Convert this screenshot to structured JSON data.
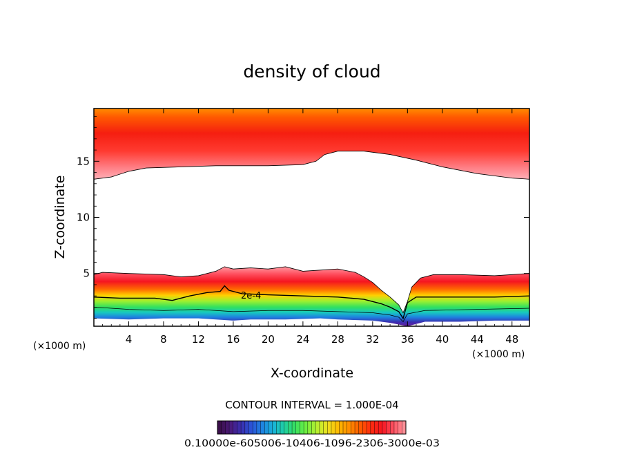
{
  "chart_data": {
    "type": "contour",
    "title": "density of cloud",
    "xlabel": "X-coordinate",
    "ylabel": "Z-coordinate",
    "x_unit": "(×1000 m)",
    "y_unit": "(×1000 m)",
    "xlim": [
      0,
      50
    ],
    "ylim": [
      0.3,
      19.7
    ],
    "x_ticks": [
      4,
      8,
      12,
      16,
      20,
      24,
      28,
      32,
      36,
      40,
      44,
      48
    ],
    "y_ticks": [
      5,
      10,
      15
    ],
    "contour_interval_text": "CONTOUR INTERVAL = 1.000E-04",
    "contour_label": "2e-4",
    "colorbar_labels_text": "0.10000e-605006-10406-1096-2306-3000e-03",
    "layers": [
      {
        "name": "upper-cloud",
        "top": [
          [
            0,
            19.7
          ],
          [
            50,
            19.7
          ]
        ],
        "bottom": [
          [
            0,
            13.4
          ],
          [
            2,
            13.6
          ],
          [
            4,
            14.1
          ],
          [
            6,
            14.4
          ],
          [
            10,
            14.5
          ],
          [
            14,
            14.6
          ],
          [
            20,
            14.6
          ],
          [
            24,
            14.7
          ],
          [
            25.5,
            15.0
          ],
          [
            26.5,
            15.6
          ],
          [
            28,
            15.9
          ],
          [
            31,
            15.9
          ],
          [
            34,
            15.6
          ],
          [
            37,
            15.1
          ],
          [
            40,
            14.5
          ],
          [
            44,
            13.9
          ],
          [
            48,
            13.5
          ],
          [
            50,
            13.4
          ]
        ]
      },
      {
        "name": "lower-cloud",
        "top": [
          [
            0,
            4.9
          ],
          [
            1,
            5.1
          ],
          [
            4,
            5.0
          ],
          [
            8,
            4.9
          ],
          [
            10,
            4.7
          ],
          [
            12,
            4.8
          ],
          [
            14,
            5.2
          ],
          [
            15,
            5.6
          ],
          [
            16,
            5.4
          ],
          [
            18,
            5.5
          ],
          [
            20,
            5.4
          ],
          [
            22,
            5.6
          ],
          [
            24,
            5.2
          ],
          [
            26,
            5.3
          ],
          [
            28,
            5.4
          ],
          [
            30,
            5.1
          ],
          [
            31,
            4.7
          ],
          [
            32,
            4.2
          ],
          [
            33,
            3.5
          ],
          [
            34,
            2.9
          ],
          [
            35,
            2.2
          ],
          [
            35.5,
            1.5
          ],
          [
            36,
            2.5
          ],
          [
            36.5,
            3.8
          ],
          [
            37.5,
            4.6
          ],
          [
            39,
            4.9
          ],
          [
            42,
            4.9
          ],
          [
            46,
            4.8
          ],
          [
            50,
            5.0
          ]
        ],
        "bottom": [
          [
            0,
            1.0
          ],
          [
            4,
            0.9
          ],
          [
            8,
            1.0
          ],
          [
            12,
            1.0
          ],
          [
            16,
            0.8
          ],
          [
            18,
            0.9
          ],
          [
            22,
            0.9
          ],
          [
            26,
            1.0
          ],
          [
            28,
            0.9
          ],
          [
            32,
            0.8
          ],
          [
            34,
            0.6
          ],
          [
            36,
            0.3
          ],
          [
            38,
            0.7
          ],
          [
            42,
            0.7
          ],
          [
            46,
            0.8
          ],
          [
            50,
            0.8
          ]
        ]
      }
    ],
    "contour_lines": [
      {
        "level": "2e-4",
        "points": [
          [
            0,
            2.9
          ],
          [
            3,
            2.8
          ],
          [
            7,
            2.8
          ],
          [
            9,
            2.6
          ],
          [
            11,
            3.0
          ],
          [
            13,
            3.3
          ],
          [
            14.5,
            3.4
          ],
          [
            15,
            3.9
          ],
          [
            15.5,
            3.5
          ],
          [
            17,
            3.2
          ],
          [
            20,
            3.1
          ],
          [
            24,
            3.0
          ],
          [
            28,
            2.9
          ],
          [
            31,
            2.7
          ],
          [
            33,
            2.3
          ],
          [
            34,
            2.0
          ],
          [
            35,
            1.6
          ],
          [
            35.5,
            1.0
          ],
          [
            36,
            2.4
          ],
          [
            37,
            2.9
          ],
          [
            42,
            2.9
          ],
          [
            46,
            2.9
          ],
          [
            50,
            3.0
          ]
        ]
      },
      {
        "level": "1e-4",
        "points": [
          [
            0,
            2.0
          ],
          [
            4,
            1.8
          ],
          [
            8,
            1.7
          ],
          [
            12,
            1.8
          ],
          [
            16,
            1.6
          ],
          [
            20,
            1.7
          ],
          [
            24,
            1.7
          ],
          [
            28,
            1.6
          ],
          [
            32,
            1.5
          ],
          [
            34,
            1.3
          ],
          [
            35,
            1.1
          ],
          [
            35.5,
            0.7
          ],
          [
            36,
            1.4
          ],
          [
            38,
            1.7
          ],
          [
            44,
            1.8
          ],
          [
            50,
            1.9
          ]
        ]
      }
    ],
    "colorbar_colors": [
      "#3a0f4a",
      "#4a1a7a",
      "#3a2fb0",
      "#2a55d8",
      "#1e85e0",
      "#18b4d8",
      "#20d0a0",
      "#38e060",
      "#70f040",
      "#b8f030",
      "#f0e020",
      "#ffb800",
      "#ff8c00",
      "#ff5a00",
      "#ff2a10",
      "#f51520",
      "#ff5060",
      "#ff9098"
    ]
  }
}
